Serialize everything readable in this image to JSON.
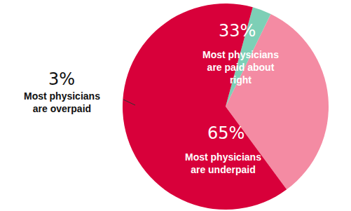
{
  "chart_data": {
    "type": "pie",
    "categories": [
      "Most physicians are paid about right",
      "Most physicians are overpaid",
      "Most physicians are underpaid"
    ],
    "values": [
      33,
      3,
      65
    ],
    "value_labels": [
      "33%",
      "3%",
      "65%"
    ],
    "colors": [
      "#f48ba3",
      "#7dcfb6",
      "#d8003a"
    ],
    "data_labels": true
  }
}
